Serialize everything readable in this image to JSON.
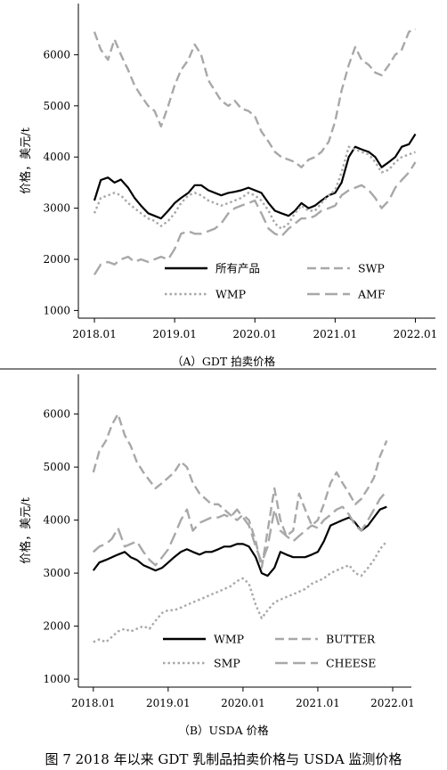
{
  "figure_caption": "图 7  2018 年以来 GDT 乳制品拍卖价格与 USDA 监测价格",
  "chart_data": [
    {
      "type": "line",
      "caption": "（A）GDT 拍卖价格",
      "ylabel": "价格，美元/t",
      "xlabel": "",
      "xlim": [
        2017.8,
        2022.25
      ],
      "ylim": [
        850,
        7000
      ],
      "yticks": [
        1000,
        2000,
        3000,
        4000,
        5000,
        6000
      ],
      "xticks": [
        {
          "x": 2018.0,
          "label": "2018.01"
        },
        {
          "x": 2019.0,
          "label": "2019.01"
        },
        {
          "x": 2020.0,
          "label": "2020.01"
        },
        {
          "x": 2021.0,
          "label": "2021.01"
        },
        {
          "x": 2022.0,
          "label": "2022.01"
        }
      ],
      "legend_placement": "bottom",
      "series": [
        {
          "name": "所有产品",
          "color": "#000000",
          "dash": "solid",
          "x": [
            2018.0,
            2018.08,
            2018.17,
            2018.25,
            2018.33,
            2018.42,
            2018.5,
            2018.58,
            2018.67,
            2018.75,
            2018.83,
            2018.92,
            2019.0,
            2019.08,
            2019.17,
            2019.25,
            2019.33,
            2019.42,
            2019.5,
            2019.58,
            2019.67,
            2019.75,
            2019.83,
            2019.92,
            2020.0,
            2020.08,
            2020.17,
            2020.25,
            2020.33,
            2020.42,
            2020.5,
            2020.58,
            2020.67,
            2020.75,
            2020.83,
            2020.92,
            2021.0,
            2021.08,
            2021.17,
            2021.25,
            2021.33,
            2021.42,
            2021.5,
            2021.58,
            2021.67,
            2021.75,
            2021.83,
            2021.92,
            2022.0
          ],
          "y": [
            3150,
            3550,
            3600,
            3500,
            3560,
            3400,
            3200,
            3050,
            2900,
            2850,
            2800,
            2950,
            3100,
            3200,
            3300,
            3450,
            3450,
            3350,
            3300,
            3250,
            3300,
            3320,
            3350,
            3400,
            3350,
            3300,
            3100,
            2950,
            2900,
            2850,
            2950,
            3100,
            3000,
            3050,
            3150,
            3250,
            3300,
            3500,
            4000,
            4200,
            4150,
            4100,
            4000,
            3800,
            3900,
            4000,
            4200,
            4250,
            4450
          ]
        },
        {
          "name": "SWP",
          "color": "#a8a8a8",
          "dash": "dash",
          "x": [
            2018.0,
            2018.08,
            2018.17,
            2018.25,
            2018.33,
            2018.42,
            2018.5,
            2018.58,
            2018.67,
            2018.75,
            2018.83,
            2018.92,
            2019.0,
            2019.08,
            2019.17,
            2019.25,
            2019.33,
            2019.42,
            2019.5,
            2019.58,
            2019.67,
            2019.75,
            2019.83,
            2019.92,
            2020.0,
            2020.08,
            2020.17,
            2020.25,
            2020.33,
            2020.42,
            2020.5,
            2020.58,
            2020.67,
            2020.75,
            2020.83,
            2020.92,
            2021.0,
            2021.08,
            2021.17,
            2021.25,
            2021.33,
            2021.42,
            2021.5,
            2021.58,
            2021.67,
            2021.75,
            2021.83,
            2021.92,
            2022.0
          ],
          "y": [
            6450,
            6100,
            5900,
            6300,
            6000,
            5700,
            5400,
            5200,
            5000,
            4900,
            4600,
            5000,
            5400,
            5700,
            5900,
            6200,
            6000,
            5500,
            5300,
            5100,
            5000,
            5100,
            4950,
            4900,
            4800,
            4500,
            4300,
            4100,
            4000,
            3950,
            3900,
            3800,
            3950,
            4000,
            4100,
            4300,
            4700,
            5300,
            5800,
            6150,
            5900,
            5800,
            5650,
            5600,
            5800,
            6000,
            6100,
            6450,
            6500
          ]
        },
        {
          "name": "WMP",
          "color": "#a8a8a8",
          "dash": "dot",
          "x": [
            2018.0,
            2018.08,
            2018.17,
            2018.25,
            2018.33,
            2018.42,
            2018.5,
            2018.58,
            2018.67,
            2018.75,
            2018.83,
            2018.92,
            2019.0,
            2019.08,
            2019.17,
            2019.25,
            2019.33,
            2019.42,
            2019.5,
            2019.58,
            2019.67,
            2019.75,
            2019.83,
            2019.92,
            2020.0,
            2020.08,
            2020.17,
            2020.25,
            2020.33,
            2020.42,
            2020.5,
            2020.58,
            2020.67,
            2020.75,
            2020.83,
            2020.92,
            2021.0,
            2021.08,
            2021.17,
            2021.25,
            2021.33,
            2021.42,
            2021.5,
            2021.58,
            2021.67,
            2021.75,
            2021.83,
            2021.92,
            2022.0
          ],
          "y": [
            2900,
            3200,
            3250,
            3300,
            3250,
            3100,
            3000,
            2900,
            2800,
            2750,
            2650,
            2750,
            2900,
            3100,
            3250,
            3300,
            3250,
            3150,
            3100,
            3050,
            3100,
            3150,
            3200,
            3300,
            3250,
            3150,
            2950,
            2700,
            2600,
            2700,
            2900,
            3050,
            2950,
            2950,
            3100,
            3250,
            3350,
            3700,
            4200,
            4150,
            4100,
            4050,
            3900,
            3700,
            3750,
            3900,
            4000,
            4050,
            4100
          ]
        },
        {
          "name": "AMF",
          "color": "#a8a8a8",
          "dash": "longdash",
          "x": [
            2018.0,
            2018.08,
            2018.17,
            2018.25,
            2018.33,
            2018.42,
            2018.5,
            2018.58,
            2018.67,
            2018.75,
            2018.83,
            2018.92,
            2019.0,
            2019.08,
            2019.17,
            2019.25,
            2019.33,
            2019.42,
            2019.5,
            2019.58,
            2019.67,
            2019.75,
            2019.83,
            2019.92,
            2020.0,
            2020.08,
            2020.17,
            2020.25,
            2020.33,
            2020.42,
            2020.5,
            2020.58,
            2020.67,
            2020.75,
            2020.83,
            2020.92,
            2021.0,
            2021.08,
            2021.17,
            2021.25,
            2021.33,
            2021.42,
            2021.5,
            2021.58,
            2021.67,
            2021.75,
            2021.83,
            2021.92,
            2022.0
          ],
          "y": [
            1700,
            1900,
            1950,
            1900,
            2000,
            2050,
            1950,
            2000,
            1950,
            2000,
            2050,
            2000,
            2200,
            2500,
            2550,
            2500,
            2500,
            2550,
            2600,
            2700,
            2900,
            3000,
            3050,
            3100,
            3150,
            2900,
            2600,
            2500,
            2450,
            2600,
            2700,
            2800,
            2800,
            2850,
            2950,
            3000,
            3050,
            3250,
            3350,
            3400,
            3450,
            3350,
            3200,
            3000,
            3150,
            3400,
            3550,
            3700,
            3900
          ]
        }
      ]
    },
    {
      "type": "line",
      "caption": "（B）USDA 价格",
      "ylabel": "价格，美元/t",
      "xlabel": "",
      "xlim": [
        2017.8,
        2022.25
      ],
      "ylim": [
        850,
        6750
      ],
      "yticks": [
        1000,
        2000,
        3000,
        4000,
        5000,
        6000
      ],
      "xticks": [
        {
          "x": 2018.0,
          "label": "2018.01"
        },
        {
          "x": 2019.0,
          "label": "2019.01"
        },
        {
          "x": 2020.0,
          "label": "2020.01"
        },
        {
          "x": 2021.0,
          "label": "2021.01"
        },
        {
          "x": 2022.0,
          "label": "2022.01"
        }
      ],
      "legend_placement": "bottom",
      "series": [
        {
          "name": "WMP",
          "color": "#000000",
          "dash": "solid",
          "x": [
            2018.0,
            2018.08,
            2018.17,
            2018.25,
            2018.33,
            2018.42,
            2018.5,
            2018.58,
            2018.67,
            2018.75,
            2018.83,
            2018.92,
            2019.0,
            2019.08,
            2019.17,
            2019.25,
            2019.33,
            2019.42,
            2019.5,
            2019.58,
            2019.67,
            2019.75,
            2019.83,
            2019.92,
            2020.0,
            2020.08,
            2020.17,
            2020.25,
            2020.33,
            2020.42,
            2020.5,
            2020.58,
            2020.67,
            2020.75,
            2020.83,
            2020.92,
            2021.0,
            2021.08,
            2021.17,
            2021.25,
            2021.33,
            2021.42,
            2021.5,
            2021.58,
            2021.67,
            2021.75,
            2021.83,
            2021.92
          ],
          "y": [
            3050,
            3200,
            3250,
            3300,
            3350,
            3400,
            3300,
            3250,
            3150,
            3100,
            3050,
            3100,
            3200,
            3300,
            3400,
            3450,
            3400,
            3350,
            3400,
            3400,
            3450,
            3500,
            3500,
            3550,
            3550,
            3500,
            3300,
            3000,
            2950,
            3100,
            3400,
            3350,
            3300,
            3300,
            3300,
            3350,
            3400,
            3600,
            3900,
            3950,
            4000,
            4050,
            3950,
            3800,
            3900,
            4050,
            4200,
            4250
          ]
        },
        {
          "name": "BUTTER",
          "color": "#a8a8a8",
          "dash": "dash",
          "x": [
            2018.0,
            2018.08,
            2018.17,
            2018.25,
            2018.33,
            2018.42,
            2018.5,
            2018.58,
            2018.67,
            2018.75,
            2018.83,
            2018.92,
            2019.0,
            2019.08,
            2019.17,
            2019.25,
            2019.33,
            2019.42,
            2019.5,
            2019.58,
            2019.67,
            2019.75,
            2019.83,
            2019.92,
            2020.0,
            2020.08,
            2020.17,
            2020.25,
            2020.33,
            2020.42,
            2020.5,
            2020.58,
            2020.67,
            2020.75,
            2020.83,
            2020.92,
            2021.0,
            2021.08,
            2021.17,
            2021.25,
            2021.33,
            2021.42,
            2021.5,
            2021.58,
            2021.67,
            2021.75,
            2021.83,
            2021.92
          ],
          "y": [
            4900,
            5300,
            5500,
            5800,
            6000,
            5600,
            5400,
            5100,
            4900,
            4750,
            4600,
            4700,
            4800,
            4900,
            5100,
            5000,
            4700,
            4500,
            4400,
            4300,
            4300,
            4200,
            4100,
            4000,
            4100,
            4000,
            3600,
            3100,
            3800,
            4600,
            4000,
            3700,
            3800,
            4500,
            4200,
            3900,
            4000,
            4300,
            4700,
            4900,
            4700,
            4500,
            4300,
            4400,
            4600,
            4800,
            5200,
            5500
          ]
        },
        {
          "name": "SMP",
          "color": "#a8a8a8",
          "dash": "dot",
          "x": [
            2018.0,
            2018.08,
            2018.17,
            2018.25,
            2018.33,
            2018.42,
            2018.5,
            2018.58,
            2018.67,
            2018.75,
            2018.83,
            2018.92,
            2019.0,
            2019.08,
            2019.17,
            2019.25,
            2019.33,
            2019.42,
            2019.5,
            2019.58,
            2019.67,
            2019.75,
            2019.83,
            2019.92,
            2020.0,
            2020.08,
            2020.17,
            2020.25,
            2020.33,
            2020.42,
            2020.5,
            2020.58,
            2020.67,
            2020.75,
            2020.83,
            2020.92,
            2021.0,
            2021.08,
            2021.17,
            2021.25,
            2021.33,
            2021.42,
            2021.5,
            2021.58,
            2021.67,
            2021.75,
            2021.83,
            2021.92
          ],
          "y": [
            1700,
            1750,
            1700,
            1800,
            1900,
            1950,
            1900,
            1950,
            2000,
            1950,
            2100,
            2250,
            2300,
            2300,
            2350,
            2400,
            2450,
            2500,
            2550,
            2600,
            2650,
            2700,
            2750,
            2850,
            2900,
            2800,
            2400,
            2150,
            2300,
            2450,
            2500,
            2550,
            2600,
            2650,
            2700,
            2800,
            2850,
            2900,
            3000,
            3050,
            3100,
            3150,
            3000,
            2950,
            3100,
            3250,
            3450,
            3600
          ]
        },
        {
          "name": "CHEESE",
          "color": "#a8a8a8",
          "dash": "longdash",
          "x": [
            2018.0,
            2018.08,
            2018.17,
            2018.25,
            2018.33,
            2018.42,
            2018.5,
            2018.58,
            2018.67,
            2018.75,
            2018.83,
            2018.92,
            2019.0,
            2019.08,
            2019.17,
            2019.25,
            2019.33,
            2019.42,
            2019.5,
            2019.58,
            2019.67,
            2019.75,
            2019.83,
            2019.92,
            2020.0,
            2020.08,
            2020.17,
            2020.25,
            2020.33,
            2020.42,
            2020.5,
            2020.58,
            2020.67,
            2020.75,
            2020.83,
            2020.92,
            2021.0,
            2021.08,
            2021.17,
            2021.25,
            2021.33,
            2021.42,
            2021.5,
            2021.58,
            2021.67,
            2021.75,
            2021.83,
            2021.92
          ],
          "y": [
            3400,
            3500,
            3550,
            3650,
            3850,
            3500,
            3550,
            3600,
            3400,
            3250,
            3150,
            3300,
            3450,
            3700,
            4000,
            4200,
            3800,
            3950,
            4000,
            4050,
            4050,
            4100,
            4050,
            4200,
            4050,
            3900,
            3500,
            3200,
            3500,
            4200,
            3800,
            3700,
            3600,
            3700,
            3800,
            3900,
            3850,
            4000,
            4100,
            4200,
            4250,
            4100,
            3900,
            3800,
            4000,
            4200,
            4400,
            4550
          ]
        }
      ]
    }
  ]
}
